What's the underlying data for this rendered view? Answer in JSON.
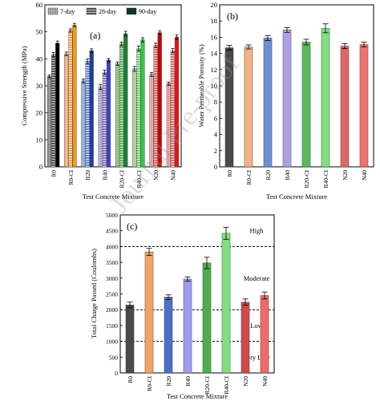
{
  "chart_data": [
    {
      "type": "bar",
      "panel_label": "(a)",
      "xlabel": "Test Concrete Mixture",
      "ylabel": "Compressive Strength (MPa)",
      "ylim": [
        0,
        60
      ],
      "yticks": [
        0,
        10,
        20,
        30,
        40,
        50,
        60
      ],
      "categories": [
        "R0",
        "R0-CI",
        "R20",
        "R40",
        "R20-CI",
        "R40-CI",
        "N20",
        "N40"
      ],
      "legend_position": "top-left",
      "series": [
        {
          "name": "7-day",
          "pattern": "dots",
          "colors": [
            "#8a8a8a",
            "#f4b183",
            "#8faadc",
            "#b4a7d6",
            "#93c47d",
            "#a9d18e",
            "#e6a0a0",
            "#ea9999"
          ],
          "values": [
            33.5,
            41.8,
            31.8,
            29.5,
            38.2,
            36.3,
            34.2,
            30.8
          ],
          "errors": [
            0.5,
            0.7,
            0.7,
            0.9,
            0.6,
            0.9,
            0.7,
            0.6
          ]
        },
        {
          "name": "28-day",
          "pattern": "hlines",
          "colors": [
            "#555555",
            "#f4a460",
            "#6d8fd6",
            "#8e7cc3",
            "#5cb85c",
            "#7ccd7c",
            "#e06666",
            "#e57373"
          ],
          "values": [
            41.5,
            50.5,
            39.0,
            35.0,
            45.5,
            43.8,
            45.0,
            43.0
          ],
          "errors": [
            0.8,
            0.6,
            0.9,
            0.8,
            0.7,
            0.9,
            0.8,
            0.8
          ]
        },
        {
          "name": "90-day",
          "pattern": "solid",
          "colors": [
            "#000000",
            "#f39c12",
            "#1f3f9f",
            "#3f3fd0",
            "#1a7f3a",
            "#2ecc40",
            "#cc0000",
            "#ee1111"
          ],
          "values": [
            45.8,
            52.5,
            43.0,
            39.5,
            49.3,
            47.0,
            49.7,
            48.0
          ],
          "errors": [
            0.8,
            0.6,
            0.7,
            0.6,
            0.9,
            0.8,
            0.6,
            0.8
          ]
        }
      ]
    },
    {
      "type": "bar",
      "panel_label": "(b)",
      "xlabel": "Test Concrete Mixture",
      "ylabel": "Water Permeable Porosity (%)",
      "ylim": [
        0,
        20
      ],
      "yticks": [
        0,
        2,
        4,
        6,
        8,
        10,
        12,
        14,
        16,
        18,
        20
      ],
      "categories": [
        "R0",
        "R0-CI",
        "R20",
        "R40",
        "R20-CI",
        "R40-CI",
        "N20",
        "N40"
      ],
      "colors": [
        "#4a4a4a",
        "#f4b183",
        "#6d8fd6",
        "#a9a3e6",
        "#5cb85c",
        "#7ee07e",
        "#e06666",
        "#f07070"
      ],
      "values": [
        14.7,
        14.8,
        15.9,
        16.9,
        15.4,
        17.1,
        14.9,
        15.1
      ],
      "errors": [
        0.3,
        0.25,
        0.3,
        0.3,
        0.35,
        0.55,
        0.3,
        0.3
      ]
    },
    {
      "type": "bar",
      "panel_label": "(c)",
      "xlabel": "Test Concrete Mixture",
      "ylabel": "Total Charge Passed (Coulombs)",
      "ylim": [
        0,
        5000
      ],
      "yticks": [
        0,
        500,
        1000,
        1500,
        2000,
        2500,
        3000,
        3500,
        4000,
        4500,
        5000
      ],
      "categories": [
        "R0",
        "R0-CI",
        "R20",
        "R40",
        "R20-CI",
        "R40-CI",
        "N20",
        "N40"
      ],
      "colors": [
        "#4a4a4a",
        "#f4a460",
        "#4f6fc6",
        "#9c9cf0",
        "#4cae4c",
        "#7ee07e",
        "#d04a4a",
        "#f06a6a"
      ],
      "values": [
        2150,
        3830,
        2400,
        2970,
        3480,
        4420,
        2240,
        2450
      ],
      "errors": [
        90,
        110,
        70,
        70,
        180,
        190,
        100,
        110
      ],
      "thresholds": [
        1000,
        2000,
        4000
      ],
      "zone_labels": [
        {
          "label": "High",
          "value": 4500
        },
        {
          "label": "Moderate",
          "value": 3000
        },
        {
          "label": "Low",
          "value": 1500
        },
        {
          "label": "Very Low",
          "value": 500
        }
      ]
    }
  ],
  "watermark": "Journal Pre-proof"
}
